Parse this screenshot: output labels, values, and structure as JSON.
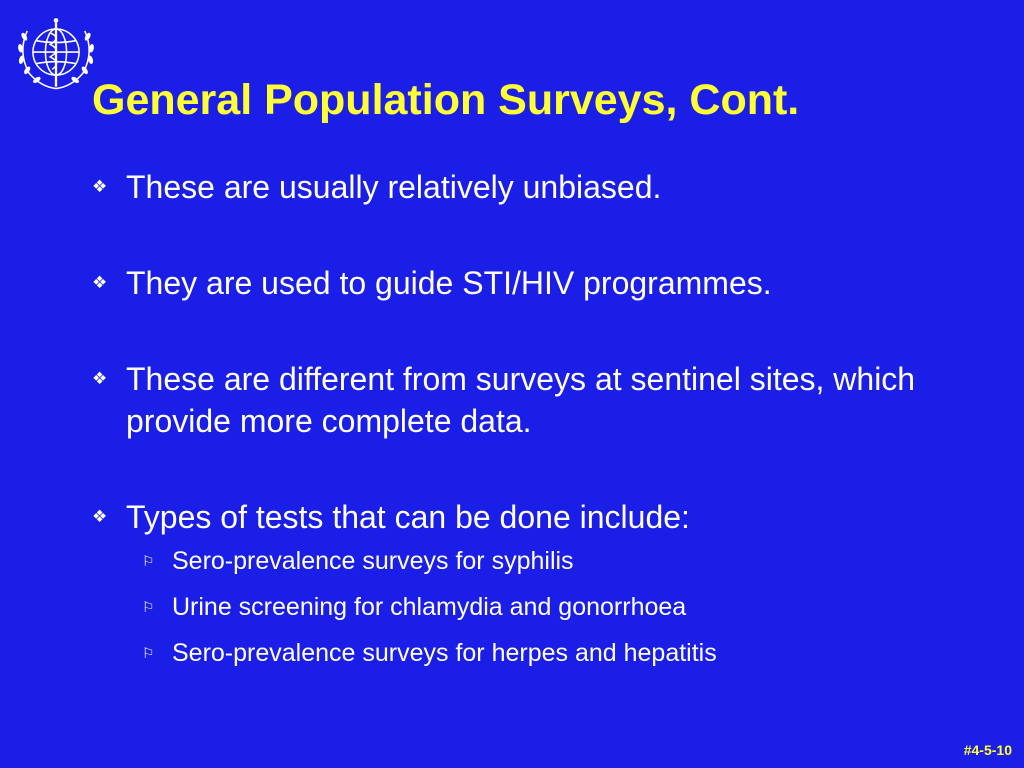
{
  "logo": {
    "icon": "who-emblem-icon"
  },
  "title": "General Population Surveys, Cont.",
  "bullets": [
    {
      "marker": "❖",
      "text": "These are usually relatively unbiased."
    },
    {
      "marker": "❖",
      "text": "They are used to guide STI/HIV programmes."
    },
    {
      "marker": "❖",
      "text": "These are different from surveys at sentinel sites, which provide more complete data."
    },
    {
      "marker": "❖",
      "text": "Types of tests that can be done include:",
      "sub_items": [
        {
          "marker": "⚐",
          "text": "Sero-prevalence surveys for syphilis"
        },
        {
          "marker": "⚐",
          "text": "Urine screening for chlamydia and gonorrhoea"
        },
        {
          "marker": "⚐",
          "text": "Sero-prevalence surveys for herpes and hepatitis"
        }
      ]
    }
  ],
  "slide_number": "#4-5-10",
  "colors": {
    "background": "#1a1ee6",
    "title": "#ffff33",
    "body_text": "#ffffff"
  }
}
